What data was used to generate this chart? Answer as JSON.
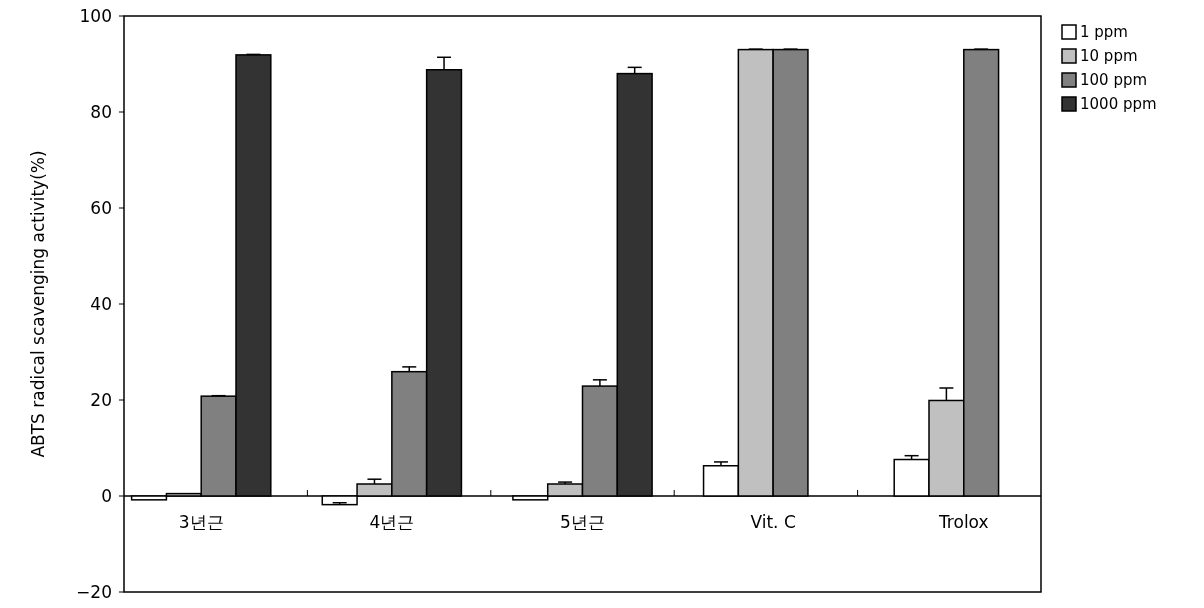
{
  "chart_data": {
    "type": "bar",
    "ylabel": "ABTS radical scavenging activity(%)",
    "categories": [
      "3년근",
      "4년근",
      "5년근",
      "Vit. C",
      "Trolox"
    ],
    "series": [
      {
        "name": "1 ppm",
        "color": "#ffffff",
        "values": [
          -0.8,
          -1.8,
          -0.8,
          6.3,
          7.6
        ],
        "errors": [
          null,
          0.4,
          null,
          0.8,
          0.8
        ]
      },
      {
        "name": "10 ppm",
        "color": "#c0c0c0",
        "values": [
          0.5,
          2.5,
          2.5,
          93,
          19.9
        ],
        "errors": [
          null,
          1,
          0.4,
          0.1,
          2.6
        ]
      },
      {
        "name": "100 ppm",
        "color": "#808080",
        "values": [
          20.8,
          25.9,
          22.9,
          93,
          93
        ],
        "errors": [
          0.1,
          1,
          1.3,
          0.1,
          0.1
        ]
      },
      {
        "name": "1000 ppm",
        "color": "#333333",
        "values": [
          91.9,
          88.8,
          88,
          null,
          null
        ],
        "errors": [
          0.1,
          2.6,
          1.3,
          null,
          null
        ]
      }
    ],
    "ylim": [
      -20,
      100
    ],
    "yticks": [
      {
        "value": -20,
        "label": "−20"
      },
      0,
      20,
      40,
      60,
      80,
      100
    ],
    "legend": "top right"
  }
}
